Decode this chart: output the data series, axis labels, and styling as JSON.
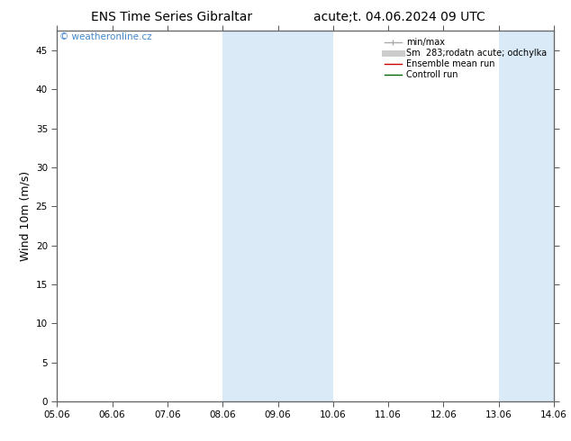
{
  "title_left": "ENS Time Series Gibraltar",
  "title_right": "acute;t. 04.06.2024 09 UTC",
  "ylabel": "Wind 10m (m/s)",
  "ylim": [
    0,
    47.5
  ],
  "yticks": [
    0,
    5,
    10,
    15,
    20,
    25,
    30,
    35,
    40,
    45
  ],
  "xlim": [
    0,
    9
  ],
  "xtick_labels": [
    "05.06",
    "06.06",
    "07.06",
    "08.06",
    "09.06",
    "10.06",
    "11.06",
    "12.06",
    "13.06",
    "14.06"
  ],
  "shaded_bands": [
    {
      "xmin": 3.0,
      "xmax": 5.0
    },
    {
      "xmin": 8.0,
      "xmax": 9.5
    }
  ],
  "band_color": "#daeaf7",
  "background_color": "#ffffff",
  "watermark": "© weatheronline.cz",
  "watermark_color": "#4488cc",
  "legend_entries": [
    {
      "label": "min/max",
      "color": "#aaaaaa",
      "lw": 1.0
    },
    {
      "label": "Sm  283;rodatn acute; odchylka",
      "color": "#cccccc",
      "lw": 5
    },
    {
      "label": "Ensemble mean run",
      "color": "#cc0000",
      "lw": 1.0
    },
    {
      "label": "Controll run",
      "color": "#006600",
      "lw": 1.0
    }
  ],
  "grid_color": "#dddddd",
  "border_color": "#666666",
  "title_fontsize": 10,
  "tick_fontsize": 7.5,
  "ylabel_fontsize": 9,
  "legend_fontsize": 7
}
